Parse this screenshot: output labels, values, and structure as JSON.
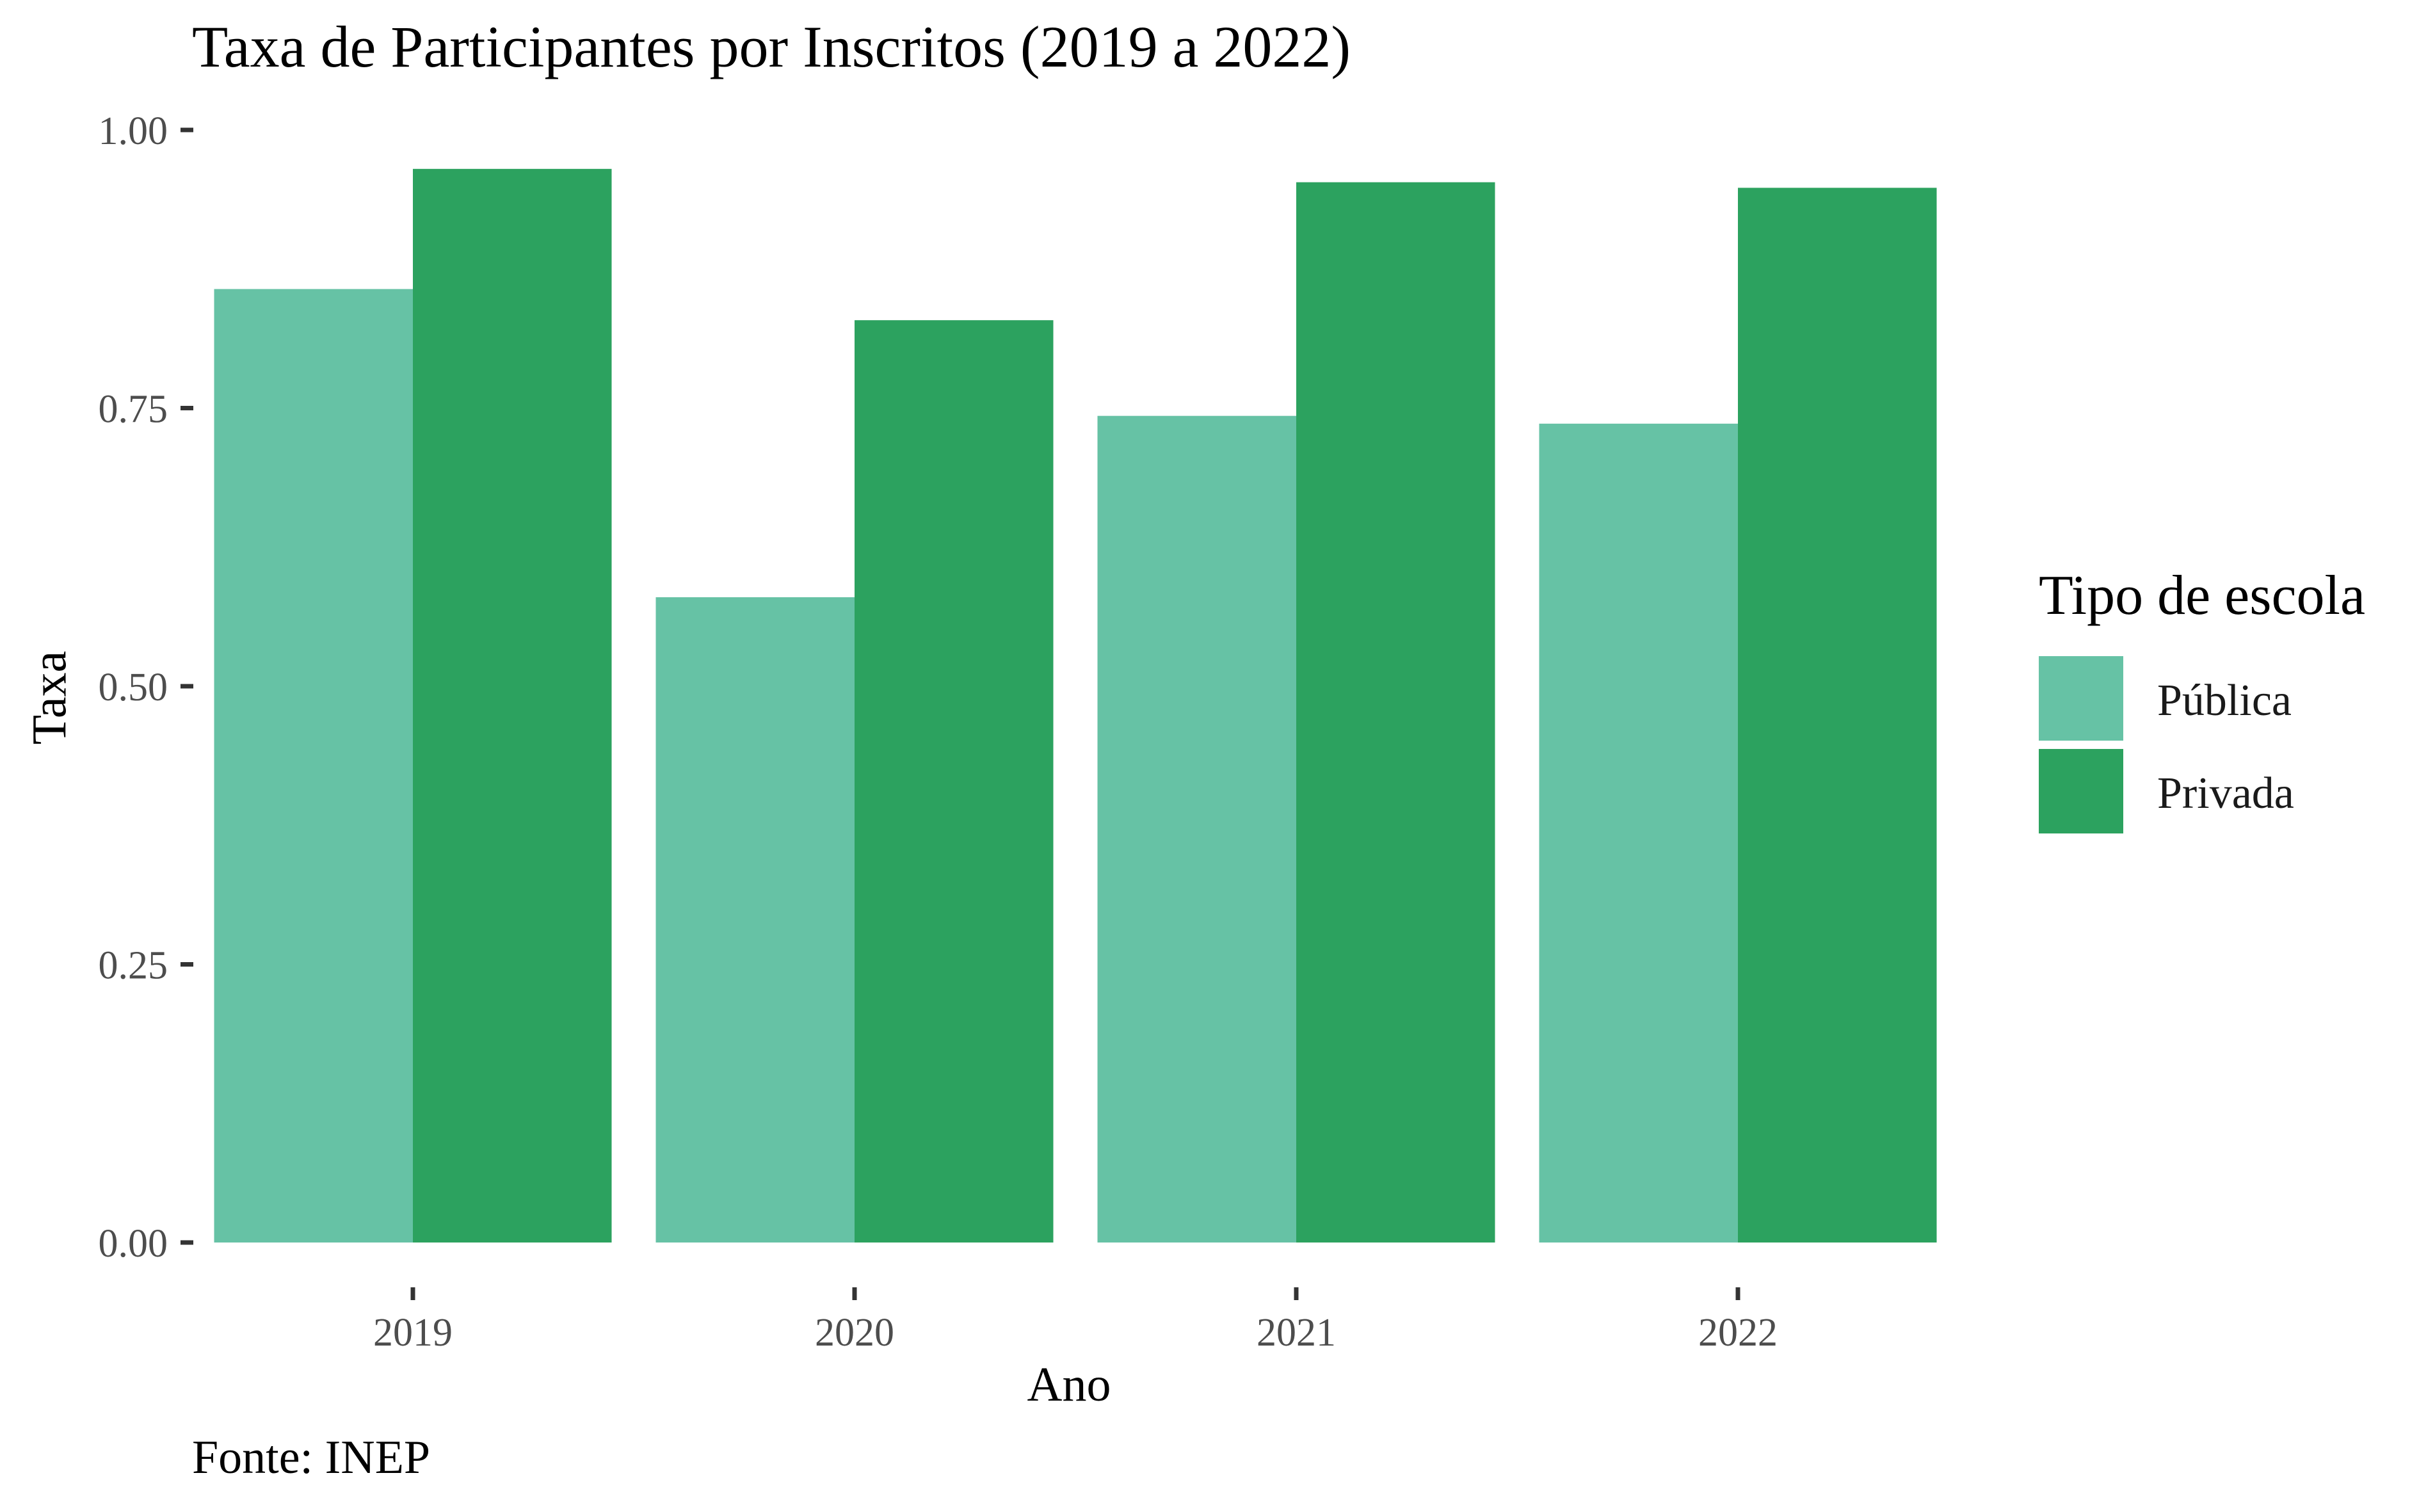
{
  "chart_data": {
    "type": "bar",
    "title": "Taxa de Participantes por Inscritos (2019 a 2022)",
    "xlabel": "Ano",
    "ylabel": "Taxa",
    "caption": "Fonte: INEP",
    "categories": [
      "2019",
      "2020",
      "2021",
      "2022"
    ],
    "series": [
      {
        "name": "Pública",
        "color": "#66c2a5",
        "values": [
          0.857,
          0.58,
          0.743,
          0.736
        ]
      },
      {
        "name": "Privada",
        "color": "#2ca25f",
        "values": [
          0.965,
          0.829,
          0.953,
          0.948
        ]
      }
    ],
    "ylim": [
      0,
      1
    ],
    "yticks": [
      "0.00",
      "0.25",
      "0.50",
      "0.75",
      "1.00"
    ],
    "grid": false,
    "legend": {
      "title": "Tipo de escola",
      "position": "right"
    }
  }
}
